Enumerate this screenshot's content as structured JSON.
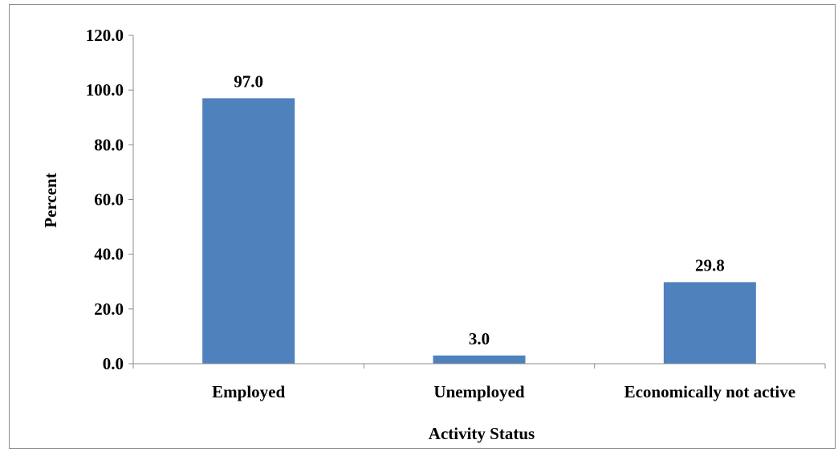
{
  "chart_data": {
    "type": "bar",
    "title": "",
    "xlabel": "Activity Status",
    "ylabel": "Percent",
    "categories": [
      "Employed",
      "Unemployed",
      "Economically not active"
    ],
    "values": [
      97.0,
      3.0,
      29.8
    ],
    "data_labels": [
      "97.0",
      "3.0",
      "29.8"
    ],
    "ylim": [
      0,
      120
    ],
    "yticks": [
      "0.0",
      "20.0",
      "40.0",
      "60.0",
      "80.0",
      "100.0",
      "120.0"
    ],
    "bar_color": "#4f81bd",
    "grid": false,
    "legend": "none"
  }
}
